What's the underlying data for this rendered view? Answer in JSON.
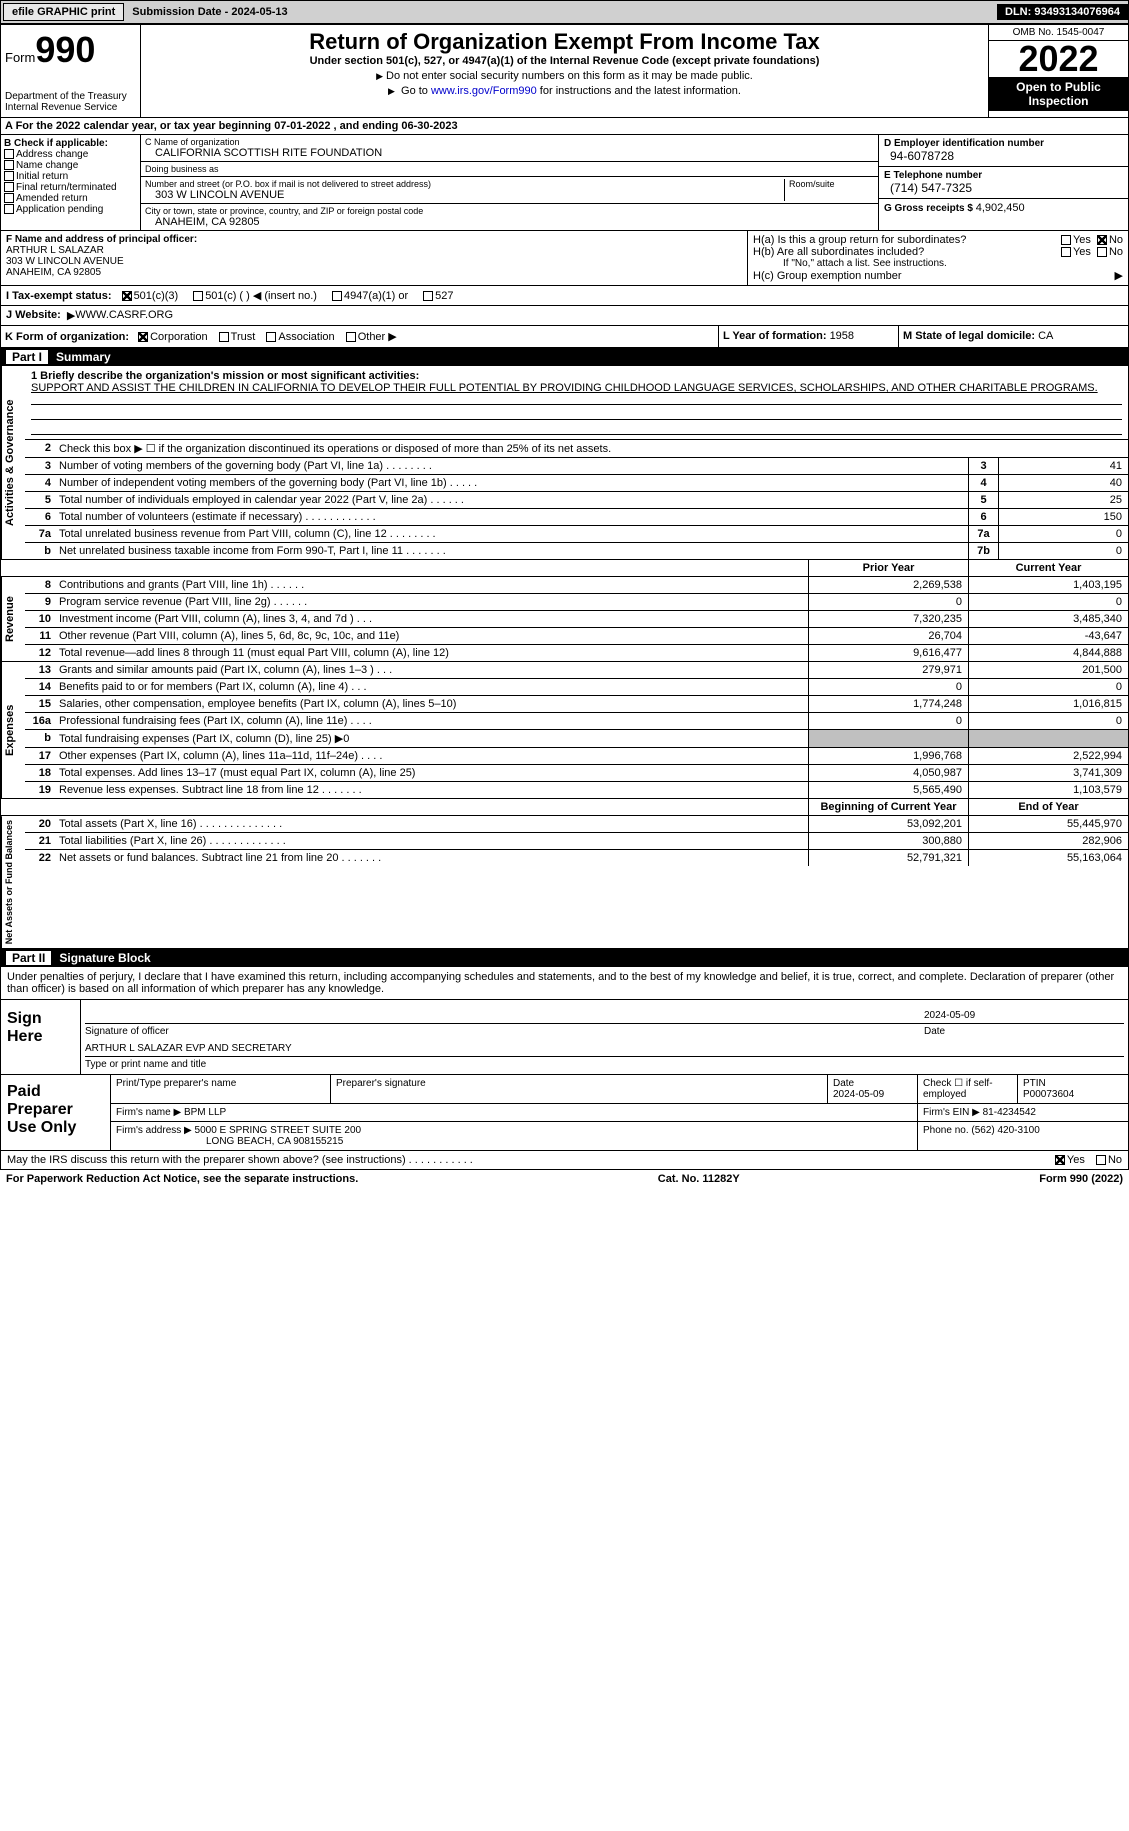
{
  "topbar": {
    "efile": "efile GRAPHIC print",
    "submission_label": "Submission Date - ",
    "submission_date": "2024-05-13",
    "dln_label": "DLN: ",
    "dln": "93493134076964"
  },
  "header": {
    "form_label": "Form",
    "form_number": "990",
    "dept": "Department of the Treasury\nInternal Revenue Service",
    "title": "Return of Organization Exempt From Income Tax",
    "subtitle": "Under section 501(c), 527, or 4947(a)(1) of the Internal Revenue Code (except private foundations)",
    "note1": "Do not enter social security numbers on this form as it may be made public.",
    "note2_pre": "Go to ",
    "note2_link": "www.irs.gov/Form990",
    "note2_post": " for instructions and the latest information.",
    "omb": "OMB No. 1545-0047",
    "year": "2022",
    "inspect": "Open to Public Inspection"
  },
  "row_a": {
    "text": "A For the 2022 calendar year, or tax year beginning 07-01-2022   , and ending 06-30-2023"
  },
  "section_b": {
    "header": "B Check if applicable:",
    "opts": [
      "Address change",
      "Name change",
      "Initial return",
      "Final return/terminated",
      "Amended return",
      "Application pending"
    ]
  },
  "section_c": {
    "name_lbl": "C Name of organization",
    "name": "CALIFORNIA SCOTTISH RITE FOUNDATION",
    "dba_lbl": "Doing business as",
    "dba": "",
    "addr_lbl": "Number and street (or P.O. box if mail is not delivered to street address)",
    "room_lbl": "Room/suite",
    "addr": "303 W LINCOLN AVENUE",
    "city_lbl": "City or town, state or province, country, and ZIP or foreign postal code",
    "city": "ANAHEIM, CA  92805"
  },
  "section_d": {
    "ein_lbl": "D Employer identification number",
    "ein": "94-6078728",
    "phone_lbl": "E Telephone number",
    "phone": "(714) 547-7325",
    "gross_lbl": "G Gross receipts $ ",
    "gross": "4,902,450"
  },
  "section_f": {
    "lbl": "F Name and address of principal officer:",
    "name": "ARTHUR L SALAZAR",
    "addr1": "303 W LINCOLN AVENUE",
    "addr2": "ANAHEIM, CA  92805"
  },
  "section_h": {
    "ha_lbl": "H(a)  Is this a group return for subordinates?",
    "hb_lbl": "H(b)  Are all subordinates included?",
    "hb_note": "If \"No,\" attach a list. See instructions.",
    "hc_lbl": "H(c)  Group exemption number",
    "yes": "Yes",
    "no": "No"
  },
  "row_i": {
    "lbl": "I   Tax-exempt status:",
    "o1": "501(c)(3)",
    "o2": "501(c) (  ) ◀ (insert no.)",
    "o3": "4947(a)(1) or",
    "o4": "527"
  },
  "row_j": {
    "lbl": "J   Website:",
    "val": "WWW.CASRF.ORG"
  },
  "row_k": {
    "k_lbl": "K Form of organization:",
    "k_opts": [
      "Corporation",
      "Trust",
      "Association",
      "Other"
    ],
    "l_lbl": "L Year of formation: ",
    "l_val": "1958",
    "m_lbl": "M State of legal domicile: ",
    "m_val": "CA"
  },
  "part1": {
    "num": "Part I",
    "title": "Summary"
  },
  "summary": {
    "vtab_gov": "Activities & Governance",
    "vtab_rev": "Revenue",
    "vtab_exp": "Expenses",
    "vtab_net": "Net Assets or Fund Balances",
    "q1_lbl": "1   Briefly describe the organization's mission or most significant activities:",
    "q1_text": "SUPPORT AND ASSIST THE CHILDREN IN CALIFORNIA TO DEVELOP THEIR FULL POTENTIAL BY PROVIDING CHILDHOOD LANGUAGE SERVICES, SCHOLARSHIPS, AND OTHER CHARITABLE PROGRAMS.",
    "q2": "Check this box ▶ ☐ if the organization discontinued its operations or disposed of more than 25% of its net assets.",
    "q3": "Number of voting members of the governing body (Part VI, line 1a)   .    .    .    .    .    .    .    .",
    "q3v": "41",
    "q4": "Number of independent voting members of the governing body (Part VI, line 1b)   .    .    .    .    .",
    "q4v": "40",
    "q5": "Total number of individuals employed in calendar year 2022 (Part V, line 2a)   .    .    .    .    .    .",
    "q5v": "25",
    "q6": "Total number of volunteers (estimate if necessary)    .    .    .    .    .    .    .    .    .    .    .    .",
    "q6v": "150",
    "q7a": "Total unrelated business revenue from Part VIII, column (C), line 12    .    .    .    .    .    .    .    .",
    "q7av": "0",
    "q7b": "Net unrelated business taxable income from Form 990-T, Part I, line 11    .    .    .    .    .    .    .",
    "q7bv": "0",
    "prior_hdr": "Prior Year",
    "current_hdr": "Current Year",
    "begin_hdr": "Beginning of Current Year",
    "end_hdr": "End of Year",
    "rows_rev": [
      {
        "n": "8",
        "t": "Contributions and grants (Part VIII, line 1h)    .    .    .    .    .    .",
        "py": "2,269,538",
        "cy": "1,403,195"
      },
      {
        "n": "9",
        "t": "Program service revenue (Part VIII, line 2g)    .    .    .    .    .    .",
        "py": "0",
        "cy": "0"
      },
      {
        "n": "10",
        "t": "Investment income (Part VIII, column (A), lines 3, 4, and 7d )    .    .    .",
        "py": "7,320,235",
        "cy": "3,485,340"
      },
      {
        "n": "11",
        "t": "Other revenue (Part VIII, column (A), lines 5, 6d, 8c, 9c, 10c, and 11e)",
        "py": "26,704",
        "cy": "-43,647"
      },
      {
        "n": "12",
        "t": "Total revenue—add lines 8 through 11 (must equal Part VIII, column (A), line 12)",
        "py": "9,616,477",
        "cy": "4,844,888"
      }
    ],
    "rows_exp": [
      {
        "n": "13",
        "t": "Grants and similar amounts paid (Part IX, column (A), lines 1–3 )    .    .    .",
        "py": "279,971",
        "cy": "201,500"
      },
      {
        "n": "14",
        "t": "Benefits paid to or for members (Part IX, column (A), line 4)    .    .    .",
        "py": "0",
        "cy": "0"
      },
      {
        "n": "15",
        "t": "Salaries, other compensation, employee benefits (Part IX, column (A), lines 5–10)",
        "py": "1,774,248",
        "cy": "1,016,815"
      },
      {
        "n": "16a",
        "t": "Professional fundraising fees (Part IX, column (A), line 11e)    .    .    .    .",
        "py": "0",
        "cy": "0"
      },
      {
        "n": "b",
        "t": "Total fundraising expenses (Part IX, column (D), line 25) ▶0",
        "py": "",
        "cy": "",
        "shaded": true
      },
      {
        "n": "17",
        "t": "Other expenses (Part IX, column (A), lines 11a–11d, 11f–24e)    .    .    .    .",
        "py": "1,996,768",
        "cy": "2,522,994"
      },
      {
        "n": "18",
        "t": "Total expenses. Add lines 13–17 (must equal Part IX, column (A), line 25)",
        "py": "4,050,987",
        "cy": "3,741,309"
      },
      {
        "n": "19",
        "t": "Revenue less expenses. Subtract line 18 from line 12    .    .    .    .    .    .    .",
        "py": "5,565,490",
        "cy": "1,103,579"
      }
    ],
    "rows_net": [
      {
        "n": "20",
        "t": "Total assets (Part X, line 16)    .    .    .    .    .    .    .    .    .    .    .    .    .    .",
        "py": "53,092,201",
        "cy": "55,445,970"
      },
      {
        "n": "21",
        "t": "Total liabilities (Part X, line 26)    .    .    .    .    .    .    .    .    .    .    .    .    .",
        "py": "300,880",
        "cy": "282,906"
      },
      {
        "n": "22",
        "t": "Net assets or fund balances. Subtract line 21 from line 20    .    .    .    .    .    .    .",
        "py": "52,791,321",
        "cy": "55,163,064"
      }
    ]
  },
  "part2": {
    "num": "Part II",
    "title": "Signature Block"
  },
  "sig": {
    "intro": "Under penalties of perjury, I declare that I have examined this return, including accompanying schedules and statements, and to the best of my knowledge and belief, it is true, correct, and complete. Declaration of preparer (other than officer) is based on all information of which preparer has any knowledge.",
    "sign_here": "Sign Here",
    "sig_officer_lbl": "Signature of officer",
    "date_lbl": "Date",
    "sig_date": "2024-05-09",
    "name_title": "ARTHUR L SALAZAR  EVP AND SECRETARY",
    "name_title_lbl": "Type or print name and title"
  },
  "prep": {
    "title": "Paid Preparer Use Only",
    "print_lbl": "Print/Type preparer's name",
    "sig_lbl": "Preparer's signature",
    "date_lbl": "Date",
    "date": "2024-05-09",
    "check_lbl": "Check ☐ if self-employed",
    "ptin_lbl": "PTIN",
    "ptin": "P00073604",
    "firm_name_lbl": "Firm's name    ▶",
    "firm_name": "BPM LLP",
    "firm_ein_lbl": "Firm's EIN ▶",
    "firm_ein": "81-4234542",
    "firm_addr_lbl": "Firm's address ▶",
    "firm_addr1": "5000 E SPRING STREET SUITE 200",
    "firm_addr2": "LONG BEACH, CA  908155215",
    "phone_lbl": "Phone no. ",
    "phone": "(562) 420-3100"
  },
  "footer": {
    "discuss": "May the IRS discuss this return with the preparer shown above? (see instructions)    .    .    .    .    .    .    .    .    .    .    .",
    "yes": "Yes",
    "no": "No",
    "paperwork": "For Paperwork Reduction Act Notice, see the separate instructions.",
    "cat": "Cat. No. 11282Y",
    "formref": "Form 990 (2022)"
  }
}
